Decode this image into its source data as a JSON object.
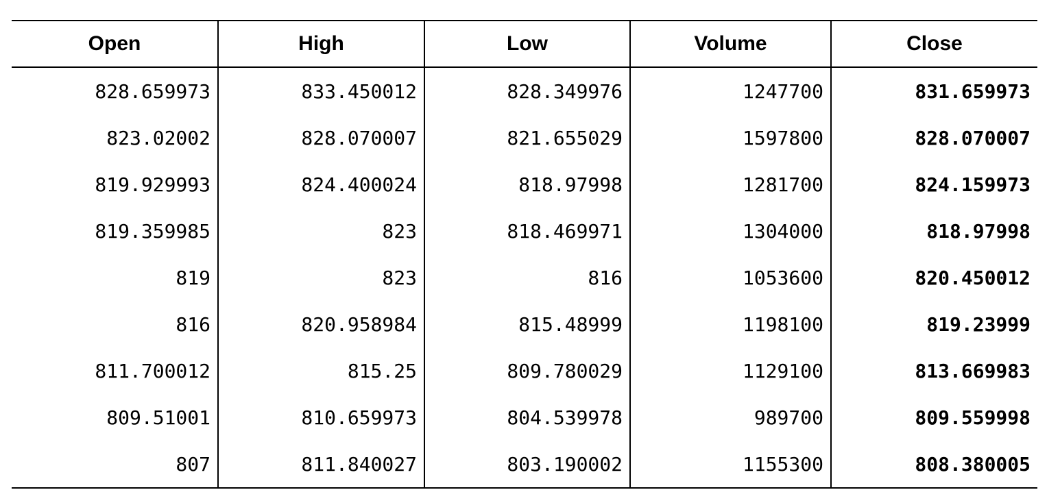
{
  "table": {
    "headers": [
      "Open",
      "High",
      "Low",
      "Volume",
      "Close"
    ],
    "rows": [
      [
        "828.659973",
        "833.450012",
        "828.349976",
        "1247700",
        "831.659973"
      ],
      [
        "823.02002",
        "828.070007",
        "821.655029",
        "1597800",
        "828.070007"
      ],
      [
        "819.929993",
        "824.400024",
        "818.97998",
        "1281700",
        "824.159973"
      ],
      [
        "819.359985",
        "823",
        "818.469971",
        "1304000",
        "818.97998"
      ],
      [
        "819",
        "823",
        "816",
        "1053600",
        "820.450012"
      ],
      [
        "816",
        "820.958984",
        "815.48999",
        "1198100",
        "819.23999"
      ],
      [
        "811.700012",
        "815.25",
        "809.780029",
        "1129100",
        "813.669983"
      ],
      [
        "809.51001",
        "810.659973",
        "804.539978",
        "989700",
        "809.559998"
      ],
      [
        "807",
        "811.840027",
        "803.190002",
        "1155300",
        "808.380005"
      ]
    ]
  }
}
